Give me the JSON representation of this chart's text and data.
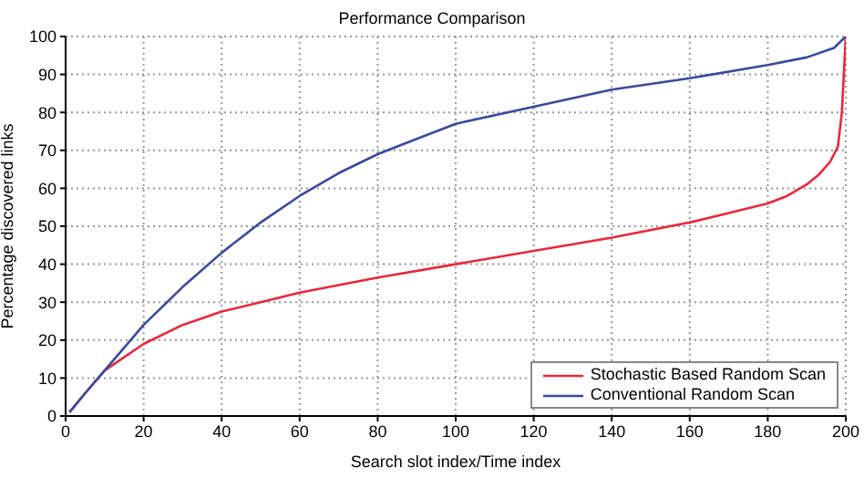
{
  "chart_data": {
    "type": "line",
    "title": "Performance Comparison",
    "xlabel": "Search slot index/Time index",
    "ylabel": "Percentage discovered links",
    "xlim": [
      0,
      200
    ],
    "xticks": [
      0,
      20,
      40,
      60,
      80,
      100,
      120,
      140,
      160,
      180,
      200
    ],
    "ylim": [
      0,
      100
    ],
    "yticks": [
      0,
      10,
      20,
      30,
      40,
      50,
      60,
      70,
      80,
      90,
      100
    ],
    "grid": true,
    "legend": "bottom right",
    "marker": "none",
    "line_style": "solid",
    "series": [
      {
        "name": "Stochastic Based Random Scan",
        "color": "#e8283c",
        "x": [
          1,
          5,
          10,
          20,
          30,
          40,
          50,
          60,
          80,
          100,
          120,
          140,
          160,
          170,
          180,
          185,
          190,
          193,
          196,
          198,
          199,
          199.5,
          200
        ],
        "values": [
          1,
          6,
          12,
          19,
          24,
          27.5,
          30,
          32.5,
          36.5,
          40,
          43.5,
          47,
          51,
          53.5,
          56,
          58,
          61,
          63.5,
          67,
          71,
          80,
          90,
          100
        ]
      },
      {
        "name": "Conventional Random Scan",
        "color": "#3a4a9c",
        "x": [
          1,
          5,
          10,
          20,
          30,
          40,
          50,
          60,
          70,
          80,
          90,
          100,
          120,
          140,
          160,
          180,
          190,
          197,
          200
        ],
        "values": [
          1,
          6,
          12,
          24,
          34,
          43,
          51,
          58,
          64,
          69,
          73,
          77,
          81.5,
          86,
          89,
          92.5,
          94.5,
          97,
          100
        ]
      }
    ]
  }
}
